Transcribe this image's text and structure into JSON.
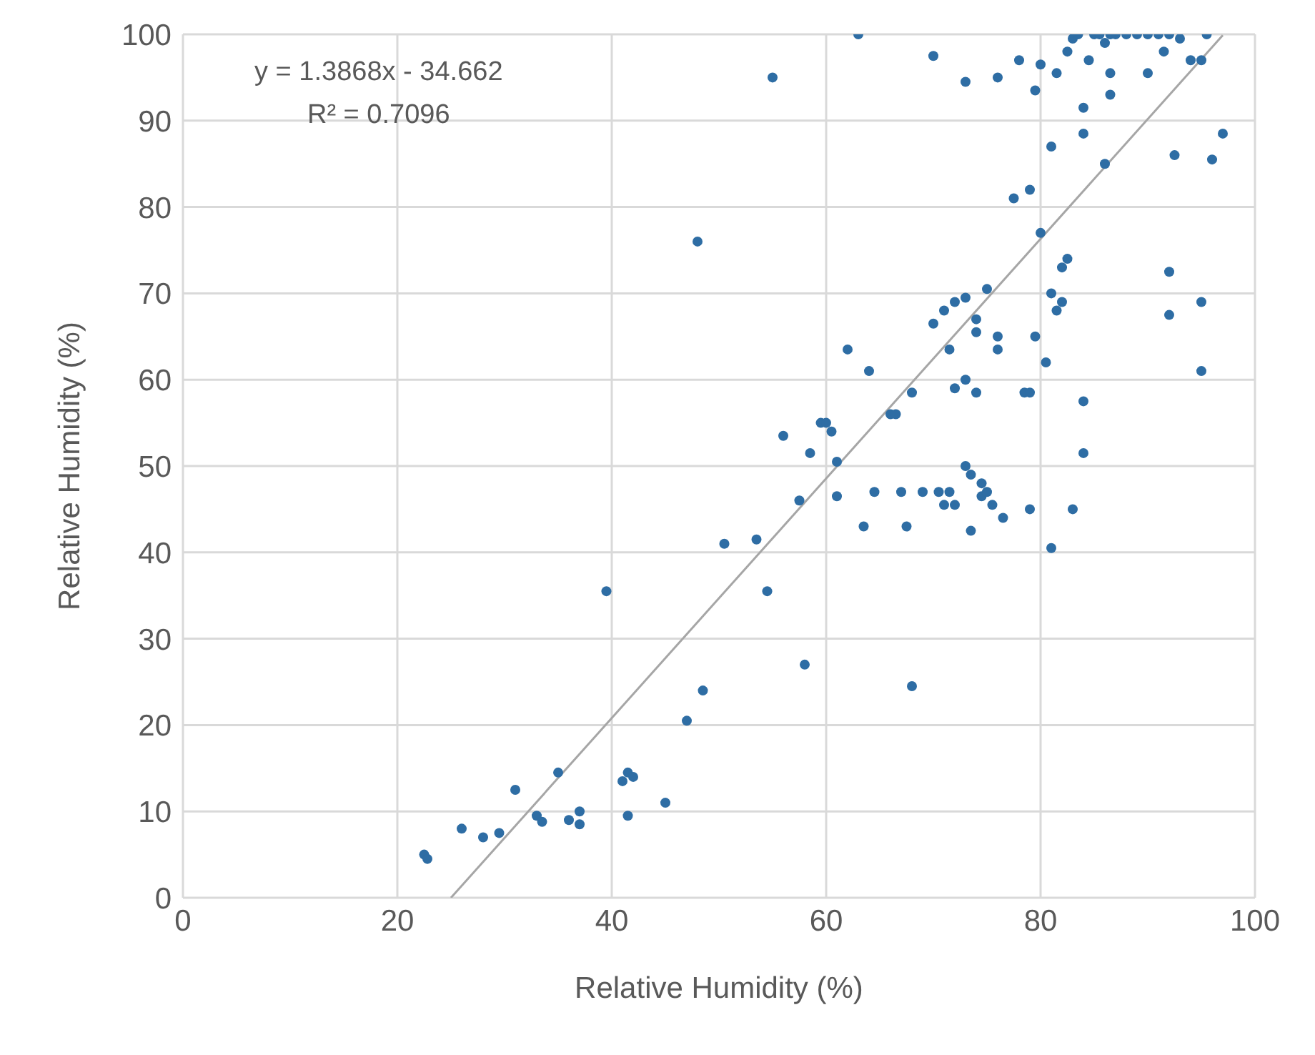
{
  "chart_data": {
    "type": "scatter",
    "xlabel": "Relative Humidity (%)",
    "ylabel": "Relative Humidity (%)",
    "annotations": [
      "y = 1.3868x - 34.662",
      "R² = 0.7096"
    ],
    "xlim": [
      0,
      100
    ],
    "xticks": [
      0,
      20,
      40,
      60,
      80,
      100
    ],
    "ylim": [
      0,
      100
    ],
    "yticks": [
      0,
      10,
      20,
      30,
      40,
      50,
      60,
      70,
      80,
      90,
      100
    ],
    "grid": true,
    "legend": false,
    "series": [
      {
        "type": "scatter",
        "color": "#2e6da4",
        "marker": "circle",
        "x": [
          22.5,
          22.8,
          26,
          28,
          29.5,
          31,
          33,
          33.5,
          35,
          36,
          37,
          37,
          39.5,
          41,
          41.5,
          42,
          41.5,
          45,
          47,
          48,
          48.5,
          50.5,
          53.5,
          54.5,
          55,
          56,
          57.5,
          58,
          58.5,
          59.5,
          60,
          60.5,
          61,
          61,
          62,
          63,
          63.5,
          64,
          64.5,
          66,
          66.5,
          67,
          67.5,
          68,
          68,
          69,
          70,
          70,
          70.5,
          71,
          71,
          71.5,
          71.5,
          72,
          72,
          72,
          73,
          73,
          73,
          73,
          73.5,
          73.5,
          74,
          74,
          74,
          74.5,
          74.5,
          75,
          75,
          75.5,
          76,
          76,
          76,
          76.5,
          77.5,
          78,
          78.5,
          79,
          79,
          79,
          79.5,
          79.5,
          80,
          80,
          80.5,
          81,
          81,
          81,
          81.5,
          81.5,
          82,
          82,
          82.5,
          82.5,
          83,
          83,
          83.5,
          84,
          84,
          84,
          84,
          84.5,
          85,
          85.5,
          86,
          86,
          86.5,
          86.5,
          86.5,
          87,
          88,
          89,
          90,
          90,
          91,
          91.5,
          92,
          92,
          92,
          92.5,
          93,
          94,
          95,
          95,
          95,
          95.5,
          96,
          97
        ],
        "values": [
          5,
          4.5,
          8,
          7,
          7.5,
          12.5,
          9.5,
          8.8,
          14.5,
          9,
          10,
          8.5,
          35.5,
          13.5,
          14.5,
          14,
          9.5,
          11,
          20.5,
          76,
          24,
          41,
          41.5,
          35.5,
          95,
          53.5,
          46,
          27,
          51.5,
          55,
          55,
          54,
          50.5,
          46.5,
          63.5,
          100,
          43,
          61,
          47,
          56,
          56,
          47,
          43,
          58.5,
          24.5,
          47,
          97.5,
          66.5,
          47,
          68,
          45.5,
          63.5,
          47,
          69,
          45.5,
          59,
          69.5,
          94.5,
          60,
          50,
          49,
          42.5,
          65.5,
          67,
          58.5,
          48,
          46.5,
          70.5,
          47,
          45.5,
          95,
          65,
          63.5,
          44,
          81,
          97,
          58.5,
          82,
          58.5,
          45,
          93.5,
          65,
          96.5,
          77,
          62,
          40.5,
          70,
          87,
          95.5,
          68,
          73,
          69,
          74,
          98,
          45,
          99.5,
          100,
          91.5,
          57.5,
          51.5,
          88.5,
          97,
          100,
          100,
          99,
          85,
          100,
          95.5,
          93,
          100,
          100,
          100,
          100,
          95.5,
          100,
          98,
          100,
          67.5,
          72.5,
          86,
          99.5,
          97,
          97,
          69,
          61,
          100,
          85.5,
          88.5
        ]
      },
      {
        "type": "line",
        "color": "#a6a6a6",
        "marker": "none",
        "x": [
          25,
          97
        ],
        "values": [
          0,
          99.9
        ]
      }
    ]
  }
}
